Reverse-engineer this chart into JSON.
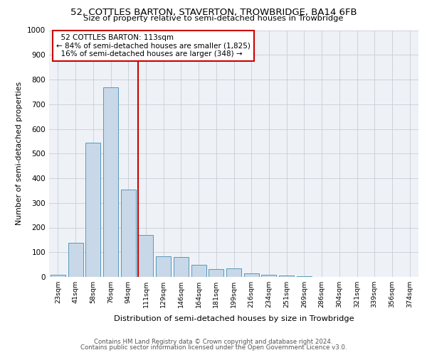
{
  "title": "52, COTTLES BARTON, STAVERTON, TROWBRIDGE, BA14 6FB",
  "subtitle": "Size of property relative to semi-detached houses in Trowbridge",
  "xlabel": "Distribution of semi-detached houses by size in Trowbridge",
  "ylabel": "Number of semi-detached properties",
  "bar_labels": [
    "23sqm",
    "41sqm",
    "58sqm",
    "76sqm",
    "94sqm",
    "111sqm",
    "129sqm",
    "146sqm",
    "164sqm",
    "181sqm",
    "199sqm",
    "216sqm",
    "234sqm",
    "251sqm",
    "269sqm",
    "286sqm",
    "304sqm",
    "321sqm",
    "339sqm",
    "356sqm",
    "374sqm"
  ],
  "bar_values": [
    8,
    138,
    545,
    768,
    355,
    170,
    83,
    82,
    50,
    32,
    35,
    15,
    8,
    5,
    3,
    0,
    0,
    0,
    0,
    0,
    0
  ],
  "bar_color": "#c8d8e8",
  "bar_edge_color": "#5599bb",
  "property_line_index": 5,
  "property_label": "52 COTTLES BARTON: 113sqm",
  "pct_smaller": 84,
  "n_smaller": 1825,
  "pct_larger": 16,
  "n_larger": 348,
  "annotation_box_color": "#cc0000",
  "vline_color": "#cc0000",
  "ylim": [
    0,
    1000
  ],
  "yticks": [
    0,
    100,
    200,
    300,
    400,
    500,
    600,
    700,
    800,
    900,
    1000
  ],
  "footer1": "Contains HM Land Registry data © Crown copyright and database right 2024.",
  "footer2": "Contains public sector information licensed under the Open Government Licence v3.0.",
  "bg_color": "#eef2f6",
  "grid_color": "#c8ccd8"
}
